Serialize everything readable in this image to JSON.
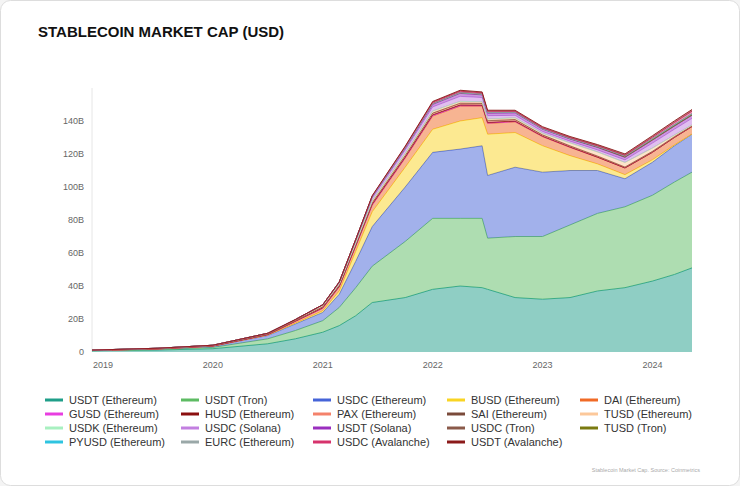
{
  "chart_data": {
    "type": "area",
    "title": "STABLECOIN MARKET CAP (USD)",
    "annotations": [
      "Stablecoin Market Cap. Source: Coinmetrics"
    ],
    "stacked": true,
    "grid": false,
    "legend": "bottom",
    "x": [
      2018.9,
      2019.5,
      2020.0,
      2020.5,
      2020.75,
      2021.0,
      2021.15,
      2021.3,
      2021.45,
      2021.75,
      2022.0,
      2022.25,
      2022.45,
      2022.5,
      2022.75,
      2023.0,
      2023.25,
      2023.5,
      2023.75,
      2024.0,
      2024.2,
      2024.36
    ],
    "xlim": [
      2018.9,
      2024.36
    ],
    "xticks": [
      2019,
      2020,
      2021,
      2022,
      2023,
      2024
    ],
    "ylim": [
      0,
      160
    ],
    "yticks": [
      0,
      {
        "value": 20,
        "label": "20B"
      },
      {
        "value": 40,
        "label": "40B"
      },
      {
        "value": 60,
        "label": "60B"
      },
      {
        "value": 80,
        "label": "80B"
      },
      {
        "value": 100,
        "label": "100B"
      },
      {
        "value": 120,
        "label": "120B"
      },
      {
        "value": 140,
        "label": "140B"
      }
    ],
    "series": [
      {
        "name": "USDT (Ethereum)",
        "color": "#1f9e89",
        "values": [
          0.8,
          1.2,
          2,
          5,
          8,
          12,
          16,
          22,
          30,
          33,
          38,
          40,
          39,
          38,
          33,
          32,
          33,
          37,
          39,
          43,
          47,
          51
        ]
      },
      {
        "name": "USDT (Tron)",
        "color": "#5dbb63",
        "values": [
          0,
          0.3,
          0.8,
          3,
          5,
          7,
          11,
          17,
          22,
          34,
          43,
          41,
          42,
          31,
          37,
          38,
          44,
          47,
          49,
          52,
          56,
          58
        ]
      },
      {
        "name": "USDC (Ethereum)",
        "color": "#4664d8",
        "values": [
          0.1,
          0.3,
          0.6,
          2,
          4,
          5,
          8,
          16,
          24,
          33,
          40,
          42,
          44,
          38,
          42,
          39,
          33,
          26,
          17,
          20,
          22,
          23
        ]
      },
      {
        "name": "BUSD (Ethereum)",
        "color": "#f9d423",
        "values": [
          0,
          0,
          0.1,
          0.2,
          0.5,
          1,
          2,
          6,
          9,
          12,
          14,
          17,
          17,
          25,
          21,
          16,
          9,
          4,
          2.5,
          1.5,
          0.5,
          0.1
        ]
      },
      {
        "name": "DAI (Ethereum)",
        "color": "#f06a26",
        "values": [
          0.05,
          0.1,
          0.1,
          0.3,
          1,
          1.5,
          2.5,
          3,
          4,
          5.5,
          8,
          9,
          7,
          6.5,
          6.5,
          5.5,
          5,
          4,
          4,
          4.5,
          4.5,
          4.5
        ]
      },
      {
        "name": "GUSD (Ethereum)",
        "color": "#e83ee0",
        "values": [
          0,
          0,
          0,
          0,
          0,
          0.1,
          0.1,
          0.2,
          0.2,
          0.2,
          0.3,
          0.3,
          0.3,
          0.3,
          0.2,
          0.2,
          0.2,
          0.1,
          0.1,
          0.1,
          0.1,
          0.1
        ]
      },
      {
        "name": "HUSD (Ethereum)",
        "color": "#8b0f0f",
        "values": [
          0,
          0,
          0.05,
          0.1,
          0.2,
          0.3,
          0.3,
          0.4,
          0.5,
          0.5,
          0.5,
          0.5,
          0.4,
          0.4,
          0.3,
          0.1,
          0.05,
          0.05,
          0,
          0,
          0,
          0
        ]
      },
      {
        "name": "PAX (Ethereum)",
        "color": "#f4826b",
        "values": [
          0.05,
          0.1,
          0.2,
          0.3,
          0.4,
          0.5,
          0.6,
          0.7,
          0.8,
          0.9,
          1,
          1,
          1,
          1,
          0.9,
          0.8,
          0.7,
          0.6,
          0.5,
          0.5,
          0.4,
          0.4
        ]
      },
      {
        "name": "SAI (Ethereum)",
        "color": "#7a4a3a",
        "values": [
          0.1,
          0.05,
          0.03,
          0.02,
          0.02,
          0.01,
          0,
          0,
          0,
          0,
          0,
          0,
          0,
          0,
          0,
          0,
          0,
          0,
          0,
          0,
          0,
          0
        ]
      },
      {
        "name": "TUSD (Ethereum)",
        "color": "#fcc89a",
        "values": [
          0.05,
          0.2,
          0.2,
          0.4,
          0.5,
          0.8,
          0.9,
          1,
          1.2,
          1.3,
          1.2,
          1.1,
          1,
          1,
          1,
          1,
          1.8,
          2.5,
          2.8,
          2,
          1,
          0.5
        ]
      },
      {
        "name": "USDK (Ethereum)",
        "color": "#a8f0c0",
        "values": [
          0,
          0.03,
          0.03,
          0.03,
          0.03,
          0.03,
          0.03,
          0.03,
          0.03,
          0.03,
          0.03,
          0.03,
          0.03,
          0.03,
          0.02,
          0.02,
          0.02,
          0.02,
          0.02,
          0.02,
          0.02,
          0.02
        ]
      },
      {
        "name": "USDC (Solana)",
        "color": "#c27fe0",
        "values": [
          0,
          0,
          0,
          0,
          0,
          0.2,
          0.5,
          1,
          1.5,
          2,
          2.5,
          3,
          2.5,
          2,
          1.5,
          1,
          1,
          1.2,
          1.5,
          3,
          3.5,
          4
        ]
      },
      {
        "name": "USDT (Solana)",
        "color": "#9a2fbf",
        "values": [
          0,
          0,
          0,
          0,
          0,
          0.2,
          0.4,
          0.6,
          0.8,
          1,
          1.5,
          1.8,
          1.6,
          1.5,
          1.5,
          1.4,
          1.3,
          1.5,
          1.6,
          1.8,
          1.9,
          1.9
        ]
      },
      {
        "name": "USDC (Tron)",
        "color": "#8a5a4a",
        "values": [
          0,
          0,
          0,
          0,
          0,
          0,
          0.1,
          0.2,
          0.3,
          0.4,
          0.5,
          0.5,
          0.5,
          0.5,
          0.4,
          0.3,
          0.2,
          0.2,
          0.1,
          0.1,
          0.1,
          0.1
        ]
      },
      {
        "name": "TUSD (Tron)",
        "color": "#7a7a10",
        "values": [
          0,
          0,
          0,
          0,
          0,
          0,
          0,
          0,
          0,
          0,
          0,
          0,
          0,
          0,
          0,
          0,
          0.2,
          0.4,
          0.6,
          0.5,
          0.4,
          0.4
        ]
      },
      {
        "name": "PYUSD (Ethereum)",
        "color": "#2ec4e0",
        "values": [
          0,
          0,
          0,
          0,
          0,
          0,
          0,
          0,
          0,
          0,
          0,
          0,
          0,
          0,
          0,
          0,
          0,
          0,
          0.1,
          0.3,
          0.4,
          0.4
        ]
      },
      {
        "name": "EURC (Ethereum)",
        "color": "#9aa8a8",
        "values": [
          0,
          0,
          0,
          0,
          0,
          0,
          0,
          0,
          0,
          0,
          0,
          0,
          0,
          0,
          0,
          0.03,
          0.03,
          0.04,
          0.04,
          0.05,
          0.05,
          0.05
        ]
      },
      {
        "name": "USDC (Avalanche)",
        "color": "#d6336c",
        "values": [
          0,
          0,
          0,
          0,
          0,
          0,
          0,
          0.1,
          0.3,
          0.6,
          0.8,
          0.8,
          0.7,
          0.7,
          0.6,
          0.5,
          0.4,
          0.4,
          0.4,
          0.8,
          1.2,
          1.5
        ]
      },
      {
        "name": "USDT (Avalanche)",
        "color": "#8b1a1a",
        "values": [
          0,
          0,
          0,
          0,
          0,
          0,
          0,
          0,
          0.1,
          0.3,
          0.5,
          0.6,
          0.6,
          0.6,
          0.6,
          0.7,
          0.7,
          0.7,
          0.8,
          0.9,
          1,
          1
        ]
      }
    ]
  }
}
